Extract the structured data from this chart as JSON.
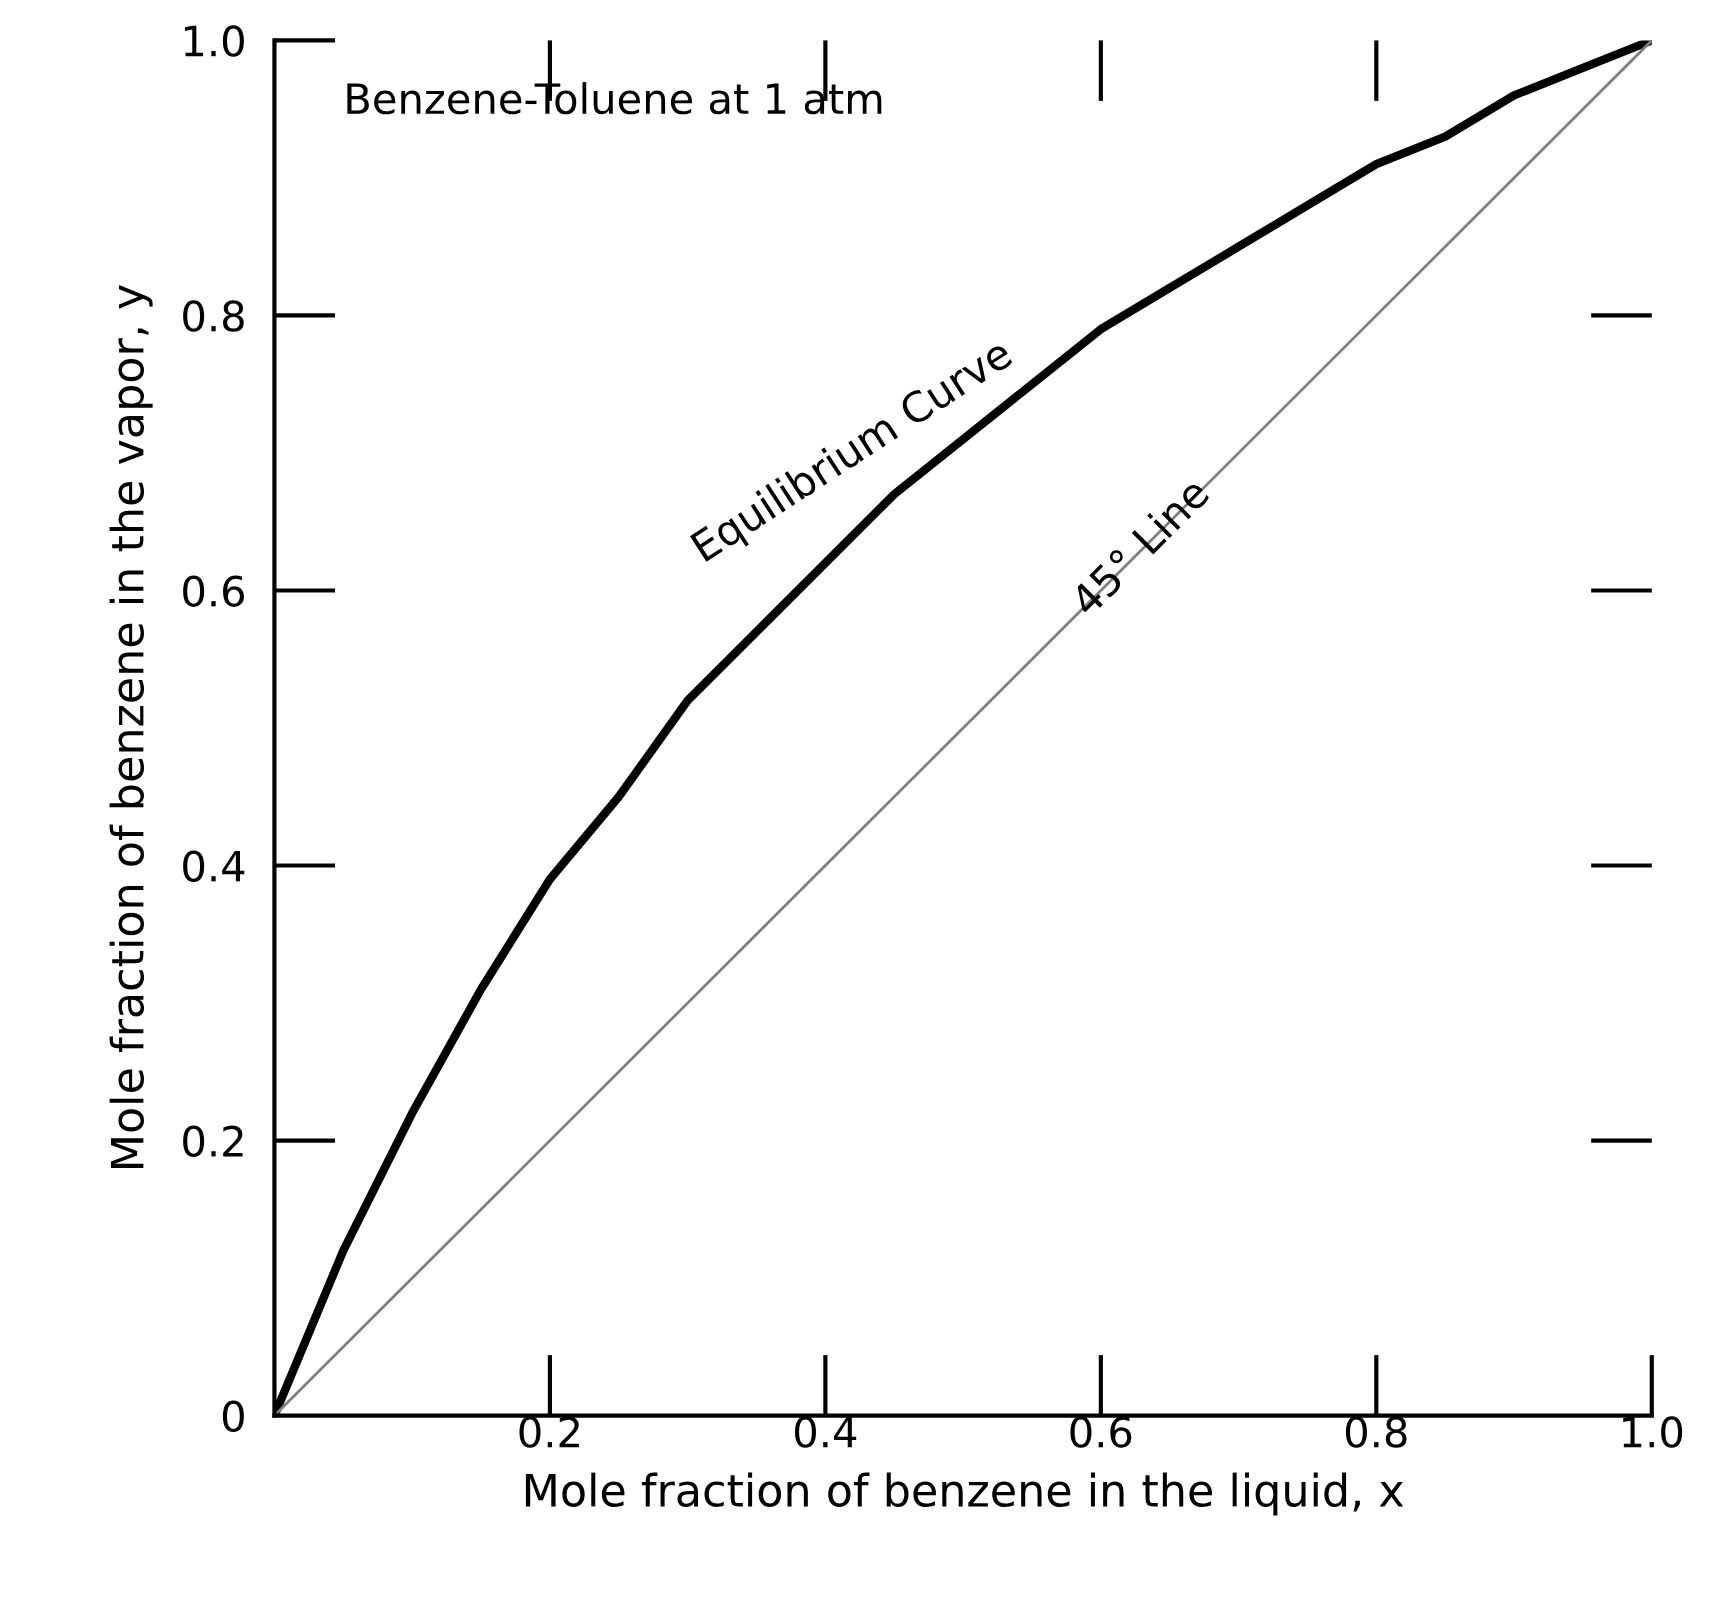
{
  "chart_data": {
    "type": "line",
    "xlabel": "Mole fraction of benzene in the liquid, x",
    "ylabel": "Mole fraction of benzene in the vapor, y",
    "series": [
      {
        "name": "Equilibrium Curve",
        "color": "#000000",
        "x": [
          0,
          0.05,
          0.1,
          0.15,
          0.2,
          0.25,
          0.3,
          0.35,
          0.4,
          0.45,
          0.5,
          0.55,
          0.6,
          0.65,
          0.7,
          0.75,
          0.8,
          0.85,
          0.9,
          0.95,
          1.0
        ],
        "values": [
          0,
          0.12,
          0.22,
          0.31,
          0.39,
          0.45,
          0.52,
          0.57,
          0.62,
          0.67,
          0.71,
          0.75,
          0.79,
          0.82,
          0.85,
          0.88,
          0.91,
          0.93,
          0.96,
          0.98,
          1.0
        ]
      },
      {
        "name": "45° Line",
        "color": "#808080",
        "x": [
          0,
          1.0
        ],
        "values": [
          0,
          1.0
        ]
      }
    ],
    "annotations": [
      "Benzene-Toluene at 1 atm"
    ],
    "xlim": [
      0,
      1.0
    ],
    "ylim": [
      0,
      1.0
    ],
    "xticks": [
      {
        "value": 0,
        "label": null
      },
      {
        "value": 0.2,
        "label": "0.2"
      },
      {
        "value": 0.4,
        "label": "0.4"
      },
      {
        "value": 0.6,
        "label": "0.6"
      },
      {
        "value": 0.8,
        "label": "0.8"
      },
      {
        "value": 1.0,
        "label": "1.0"
      }
    ],
    "yticks": [
      {
        "value": 0,
        "label": "0"
      },
      {
        "value": 0.2,
        "label": "0.2"
      },
      {
        "value": 0.4,
        "label": "0.4"
      },
      {
        "value": 0.6,
        "label": "0.6"
      },
      {
        "value": 0.8,
        "label": "0.8"
      },
      {
        "value": 1.0,
        "label": "1.0"
      }
    ],
    "grid": false,
    "legend": false,
    "marker": "none",
    "line_style": "solid"
  }
}
